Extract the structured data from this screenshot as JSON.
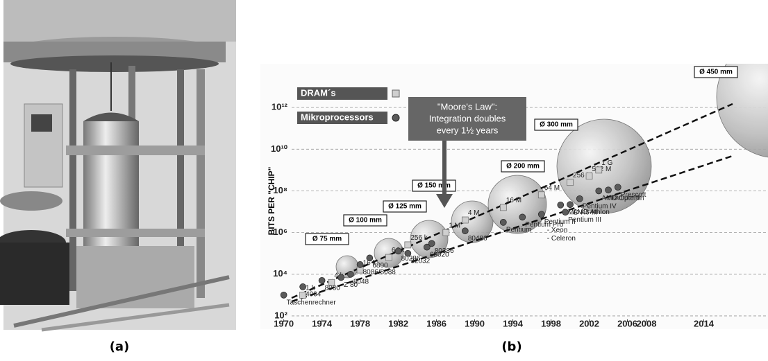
{
  "panels": [
    "(a)",
    "(b)"
  ],
  "chart_data": {
    "type": "scatter",
    "y_label": "BITS PER \"CHIP\"",
    "log_y": true,
    "grid": true,
    "xlim": [
      1968.5,
      2020
    ],
    "xticks": [
      1970,
      1974,
      1978,
      1982,
      1986,
      1990,
      1994,
      1998,
      2002,
      2006,
      2008,
      2014
    ],
    "ylim": [
      50,
      100000000000000
    ],
    "yticks": [
      {
        "value": 100,
        "label": "10²"
      },
      {
        "value": 10000,
        "label": "10⁴"
      },
      {
        "value": 1000000,
        "label": "10⁶"
      },
      {
        "value": 100000000,
        "label": "10⁸"
      },
      {
        "value": 10000000000,
        "label": "10¹⁰"
      },
      {
        "value": 1000000000000,
        "label": "10¹²"
      }
    ],
    "annotation_lines": [
      "\"Moore's Law\":",
      "Integration doubles",
      "every 1½ years"
    ],
    "wafers": [
      "Ø 75 mm",
      "Ø 100 mm",
      "Ø 125 mm",
      "Ø 150 mm",
      "Ø 200 mm",
      "Ø 300 mm",
      "Ø 450 mm"
    ],
    "extra_labels": [
      "- Xeon",
      "- Celeron"
    ],
    "series": [
      {
        "name": "DRAM´s",
        "marker": "square",
        "color": "#cfcfcf",
        "x": [
          1972,
          1975,
          1978,
          1981,
          1983,
          1987,
          1989,
          1993,
          1997,
          2000,
          2002,
          2003
        ],
        "values": [
          1000,
          4000,
          16000,
          64000,
          256000,
          1000000,
          4000000,
          16000000,
          64000000,
          256000000,
          512000000,
          1000000000
        ],
        "value_labels": [
          "1 k",
          "4 k",
          "16 k",
          "64 k",
          "256 k",
          "1 M",
          "4 M",
          "16 M",
          "64 M",
          "256 M",
          "512 M",
          "1 G"
        ]
      },
      {
        "name": "Mikroprocessors",
        "marker": "circle",
        "color": "#5a5a5a",
        "x": [
          1970,
          1972,
          1974,
          1976,
          1977,
          1978,
          1979,
          1982,
          1983,
          1985,
          1985.5,
          1989,
          1993,
          1995,
          1997,
          1999,
          1999.5,
          2000,
          2001,
          2003,
          2004,
          2005
        ],
        "values": [
          1000,
          2500,
          5000,
          7000,
          10000,
          29000,
          60000,
          130000,
          100000,
          200000,
          300000,
          1200000,
          3100000,
          5500000,
          7500000,
          21000000,
          9500000,
          22000000,
          42000000,
          100000000,
          110000000,
          150000000
        ],
        "labels": [
          "Taschenrechner",
          "4004",
          "8080",
          "Z 80",
          "8048",
          "8086/8088",
          "6800",
          "80286",
          "32032",
          "68020",
          "80386",
          "80486",
          "Pentium",
          "Pentium Pro",
          "Pentium II",
          "AMD K6-III",
          "Pentium III",
          "AMD Athlon",
          "Pentium IV",
          "AMD Opteron",
          "Itanium II",
          "Prescott"
        ]
      }
    ]
  }
}
